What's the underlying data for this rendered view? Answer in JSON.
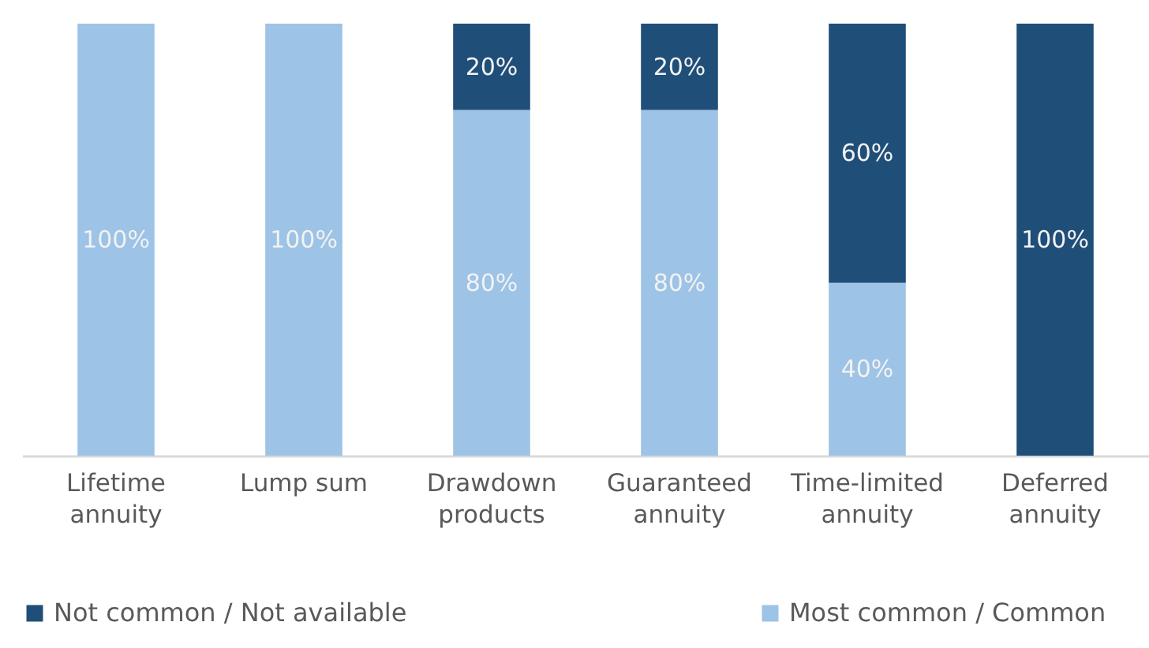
{
  "chart_data": {
    "type": "bar",
    "stacked": true,
    "legend": "bottom",
    "categories": [
      "Lifetime annuity",
      "Lump sum",
      "Drawdown products",
      "Guaranteed annuity",
      "Time-limited annuity",
      "Deferred annuity"
    ],
    "series": [
      {
        "name": "Most common / Common",
        "color": "#9dc3e6",
        "values": [
          100,
          100,
          80,
          80,
          40,
          null
        ],
        "value_labels": [
          "100%",
          "100%",
          "80%",
          "80%",
          "40%",
          null
        ]
      },
      {
        "name": "Not common / Not available",
        "color": "#1f4e79",
        "values": [
          null,
          null,
          20,
          20,
          60,
          100
        ],
        "value_labels": [
          null,
          null,
          "20%",
          "20%",
          "60%",
          "100%"
        ]
      }
    ]
  }
}
